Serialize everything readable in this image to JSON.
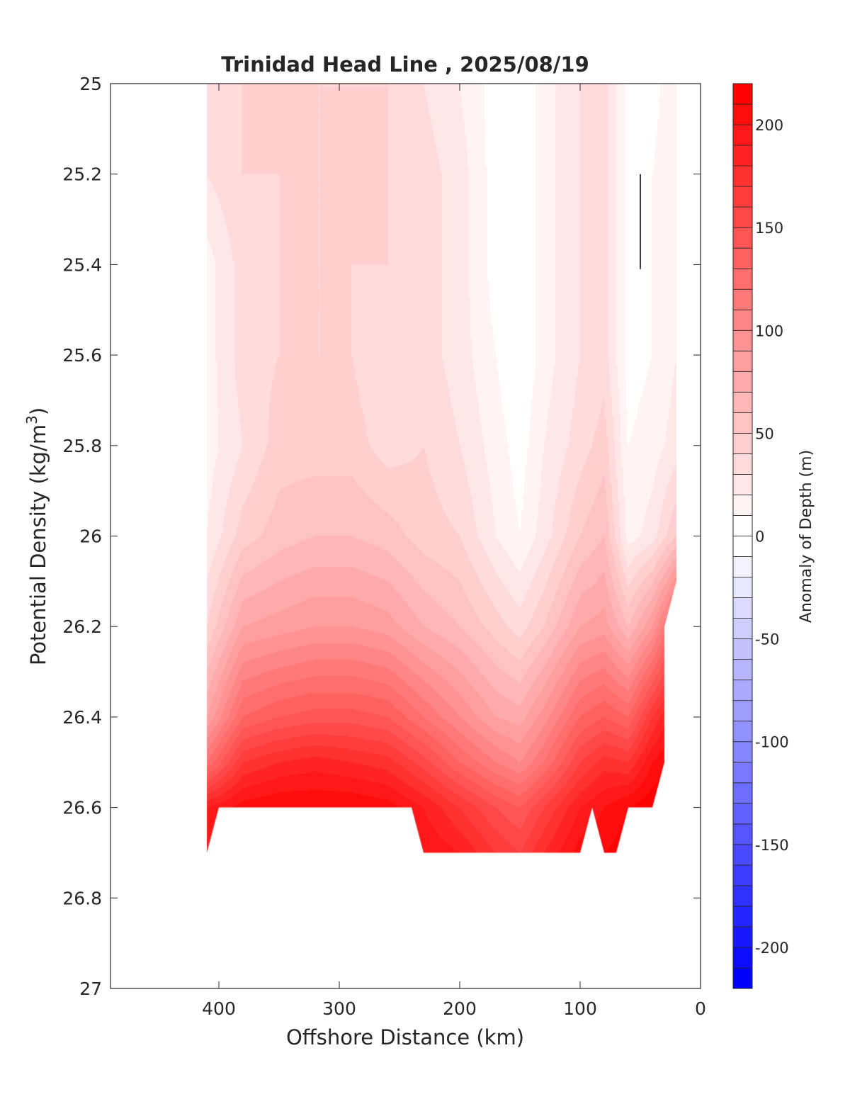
{
  "chart_data": {
    "type": "heatmap",
    "subtype": "filled-contour",
    "title": "Trinidad Head Line , 2025/08/19",
    "xlabel": "Offshore Distance (km)",
    "ylabel_main": "Potential Density (kg/m",
    "ylabel_sup": "3",
    "ylabel_close": ")",
    "xlim": [
      490,
      0
    ],
    "ylim": [
      25,
      27
    ],
    "x_reversed": true,
    "y_reversed": true,
    "xticks": [
      400,
      300,
      200,
      100,
      0
    ],
    "xtick_labels": [
      "400",
      "300",
      "200",
      "100",
      "0"
    ],
    "yticks": [
      25,
      25.2,
      25.4,
      25.6,
      25.8,
      26,
      26.2,
      26.4,
      26.6,
      26.8,
      27
    ],
    "ytick_labels": [
      "25",
      "25.2",
      "25.4",
      "25.6",
      "25.8",
      "26",
      "26.2",
      "26.4",
      "26.6",
      "26.8",
      "27"
    ],
    "colorbar": {
      "label": "Anomaly of Depth (m)",
      "range": [
        -220,
        220
      ],
      "level_step": 10,
      "ticks": [
        200,
        150,
        100,
        50,
        0,
        -50,
        -100,
        -150,
        -200
      ],
      "tick_labels": [
        "200",
        "150",
        "100",
        "50",
        "0",
        "-50",
        "-100",
        "-150",
        "-200"
      ],
      "pos_color": "#ff0000",
      "neg_color": "#0000ff"
    },
    "grid_x_km": [
      410,
      380,
      350,
      320,
      290,
      260,
      230,
      200,
      170,
      150,
      130,
      100,
      80,
      60,
      40,
      20
    ],
    "grid_density": [
      25.0,
      25.2,
      25.4,
      25.6,
      25.8,
      26.0,
      26.2,
      26.4,
      26.5,
      26.6,
      26.7
    ],
    "values": [
      [
        35,
        40,
        45,
        40,
        40,
        40,
        30,
        20,
        5,
        0,
        15,
        30,
        35,
        5,
        5,
        20
      ],
      [
        30,
        40,
        40,
        40,
        40,
        40,
        35,
        25,
        5,
        0,
        15,
        30,
        35,
        5,
        10,
        20
      ],
      [
        15,
        35,
        40,
        40,
        40,
        40,
        35,
        25,
        5,
        0,
        15,
        30,
        35,
        5,
        10,
        20
      ],
      [
        15,
        35,
        40,
        40,
        40,
        30,
        35,
        25,
        10,
        0,
        15,
        30,
        35,
        5,
        10,
        20
      ],
      [
        15,
        30,
        45,
        45,
        45,
        35,
        40,
        30,
        15,
        5,
        20,
        35,
        45,
        10,
        15,
        25
      ],
      [
        20,
        45,
        55,
        60,
        60,
        55,
        45,
        40,
        20,
        10,
        25,
        50,
        60,
        15,
        25,
        50
      ],
      [
        40,
        80,
        85,
        90,
        90,
        85,
        70,
        60,
        45,
        35,
        50,
        80,
        85,
        60,
        90,
        140
      ],
      [
        80,
        130,
        140,
        145,
        145,
        140,
        120,
        100,
        80,
        75,
        95,
        130,
        140,
        130,
        170,
        200
      ],
      [
        120,
        170,
        180,
        185,
        180,
        175,
        155,
        130,
        110,
        100,
        120,
        160,
        175,
        170,
        200,
        215
      ],
      [
        190,
        205,
        210,
        210,
        210,
        205,
        190,
        170,
        150,
        140,
        160,
        190,
        200,
        210,
        218,
        218
      ],
      [
        200,
        210,
        215,
        215,
        215,
        210,
        200,
        190,
        170,
        160,
        180,
        205,
        210,
        215,
        218,
        218
      ]
    ],
    "data_extent": [
      [
        410,
        25
      ],
      [
        20,
        25
      ],
      [
        20,
        26.1
      ],
      [
        30,
        26.2
      ],
      [
        30,
        26.5
      ],
      [
        40,
        26.6
      ],
      [
        60,
        26.6
      ],
      [
        70,
        26.7
      ],
      [
        80,
        26.7
      ],
      [
        90,
        26.6
      ],
      [
        100,
        26.7
      ],
      [
        230,
        26.7
      ],
      [
        240,
        26.6
      ],
      [
        400,
        26.6
      ],
      [
        410,
        26.7
      ]
    ],
    "contour_line": [
      [
        50,
        25.2
      ],
      [
        50,
        25.41
      ]
    ]
  }
}
